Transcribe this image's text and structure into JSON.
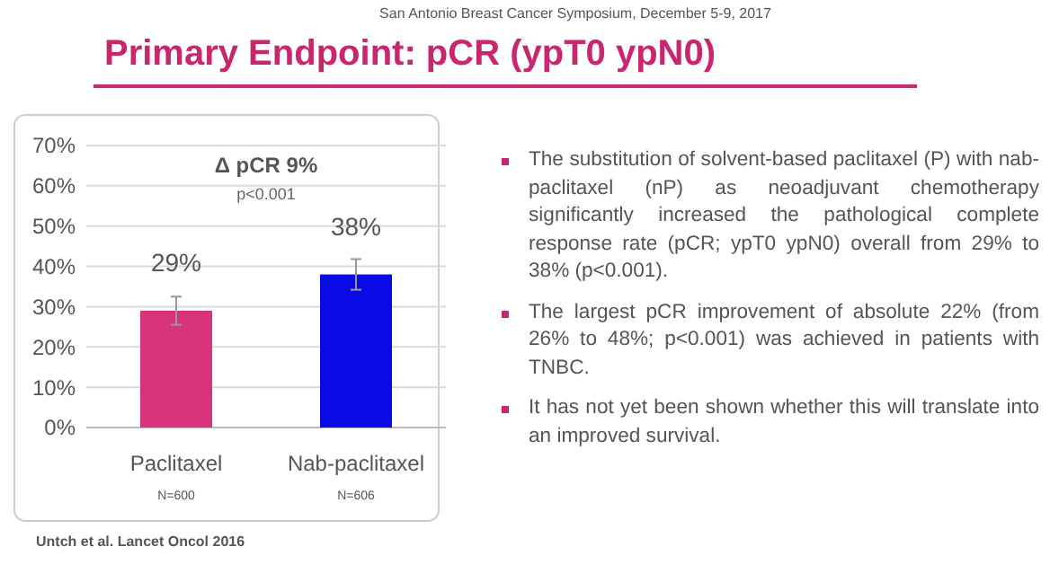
{
  "chart_data": {
    "type": "bar",
    "title": "Primary Endpoint: pCR (ypT0 ypN0)",
    "subtitle": "San Antonio Breast Cancer Symposium, December 5-9, 2017",
    "categories": [
      "Paclitaxel",
      "Nab-paclitaxel"
    ],
    "values": [
      29,
      38
    ],
    "colors": [
      "#d6337a",
      "#0a0ae6"
    ],
    "errors": [
      3.5,
      3.8
    ],
    "value_labels": [
      "29%",
      "38%"
    ],
    "ylim": [
      0,
      70
    ],
    "yticks": [
      {
        "value": 0,
        "label": "0%"
      },
      {
        "value": 10,
        "label": "10%"
      },
      {
        "value": 20,
        "label": "20%"
      },
      {
        "value": 30,
        "label": "30%"
      },
      {
        "value": 40,
        "label": "40%"
      },
      {
        "value": 50,
        "label": "50%"
      },
      {
        "value": 60,
        "label": "60%"
      },
      {
        "value": 70,
        "label": "70%"
      }
    ],
    "grid": "y",
    "annotations": [
      "N=600",
      "N=606",
      "Δ pCR 9%",
      "p<0.001",
      "The substitution of solvent-based paclitaxel (P) with nab-paclitaxel (nP) as neoadjuvant chemotherapy significantly increased the pathological complete response rate (pCR; ypT0 ypN0) overall from 29% to 38% (p<0.001).",
      "The largest pCR improvement  of absolute 22% (from 26% to 48%; p<0.001) was achieved  in patients with TNBC.",
      "It has not yet been shown whether this will translate into an improved survival.",
      "Untch et al. Lancet Oncol 2016"
    ]
  }
}
